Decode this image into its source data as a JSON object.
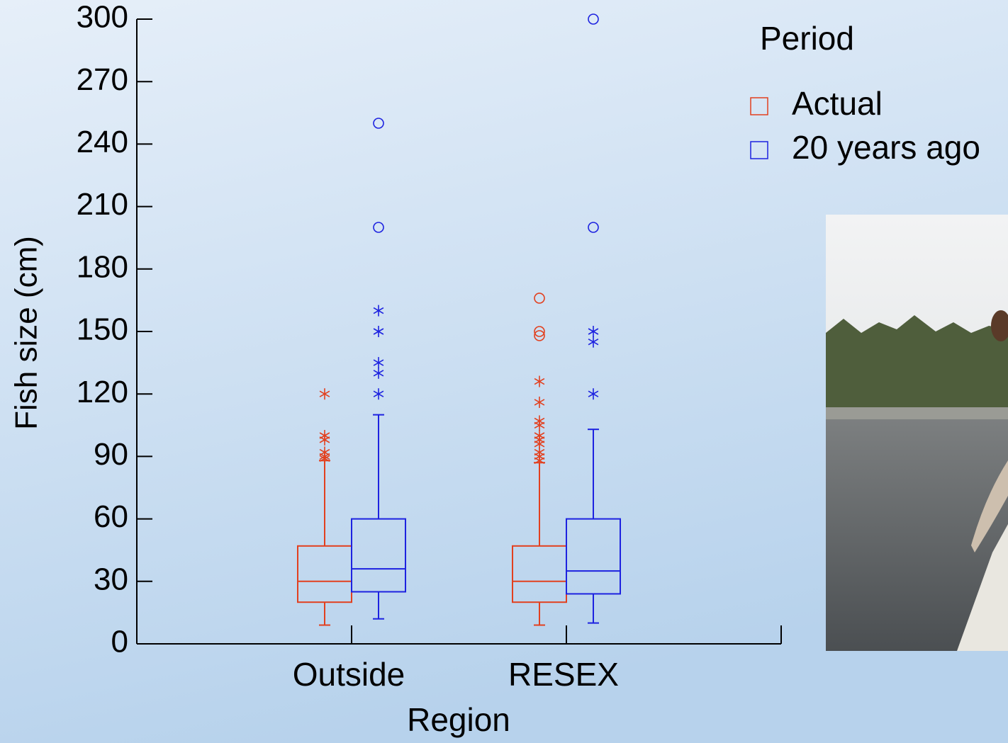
{
  "chart_data": {
    "type": "box",
    "y_label": "Fish size (cm)",
    "x_label": "Region",
    "legend_title": "Period",
    "categories": [
      "Outside",
      "RESEX"
    ],
    "ylim": [
      0,
      300
    ],
    "yticks": [
      0,
      30,
      60,
      90,
      120,
      150,
      180,
      210,
      240,
      270,
      300
    ],
    "series": [
      {
        "name": "Actual",
        "color": "#e2401f",
        "boxes": [
          {
            "whislo": 9,
            "q1": 20,
            "med": 30,
            "q3": 47,
            "whishi": 88,
            "outliers": [],
            "extremes": [
              120,
              100,
              98,
              92,
              90,
              89
            ]
          },
          {
            "whislo": 9,
            "q1": 20,
            "med": 30,
            "q3": 47,
            "whishi": 87,
            "outliers": [
              166,
              150,
              148
            ],
            "extremes": [
              126,
              116,
              107,
              105,
              100,
              98,
              96,
              92,
              90,
              88
            ]
          }
        ]
      },
      {
        "name": "20 years ago",
        "color": "#1d22e0",
        "boxes": [
          {
            "whislo": 12,
            "q1": 25,
            "med": 36,
            "q3": 60,
            "whishi": 110,
            "outliers": [
              250,
              200
            ],
            "extremes": [
              160,
              150,
              135,
              130,
              120
            ]
          },
          {
            "whislo": 10,
            "q1": 24,
            "med": 35,
            "q3": 60,
            "whishi": 103,
            "outliers": [
              300,
              200
            ],
            "extremes": [
              150,
              145,
              120
            ]
          }
        ]
      }
    ]
  }
}
